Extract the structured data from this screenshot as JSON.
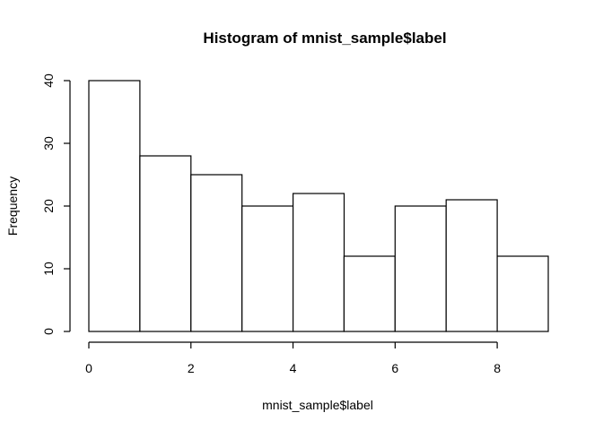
{
  "chart_data": {
    "type": "bar",
    "title": "Histogram of mnist_sample$label",
    "xlabel": "mnist_sample$label",
    "ylabel": "Frequency",
    "bins": [
      {
        "from": 0,
        "to": 1,
        "value": 40
      },
      {
        "from": 1,
        "to": 2,
        "value": 28
      },
      {
        "from": 2,
        "to": 3,
        "value": 25
      },
      {
        "from": 3,
        "to": 4,
        "value": 20
      },
      {
        "from": 4,
        "to": 5,
        "value": 22
      },
      {
        "from": 5,
        "to": 6,
        "value": 12
      },
      {
        "from": 6,
        "to": 7,
        "value": 20
      },
      {
        "from": 7,
        "to": 8,
        "value": 21
      },
      {
        "from": 8,
        "to": 9,
        "value": 12
      }
    ],
    "xticks": [
      "0",
      "2",
      "4",
      "6",
      "8"
    ],
    "yticks": [
      "0",
      "10",
      "20",
      "30",
      "40"
    ],
    "xlim": [
      0,
      9
    ],
    "ylim": [
      0,
      40
    ],
    "grid": false,
    "bar_fill": "#ffffff",
    "bar_stroke": "#000000"
  }
}
